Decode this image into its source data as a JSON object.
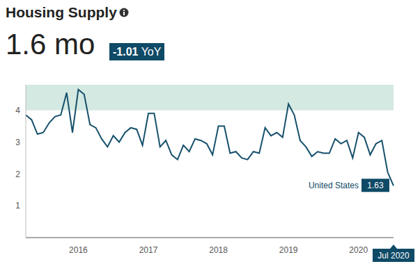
{
  "chart_data": {
    "type": "line",
    "title": "Housing Supply",
    "headline": "1.6 mo",
    "change": "-1.01",
    "change_label": "YoY",
    "categories": [
      null,
      null,
      null,
      null,
      null,
      null,
      null,
      null,
      null,
      "2016",
      null,
      null,
      null,
      null,
      null,
      null,
      null,
      null,
      null,
      null,
      null,
      "2017",
      null,
      null,
      null,
      null,
      null,
      null,
      null,
      null,
      null,
      null,
      null,
      "2018",
      null,
      null,
      null,
      null,
      null,
      null,
      null,
      null,
      null,
      null,
      null,
      "2019",
      null,
      null,
      null,
      null,
      null,
      null,
      null,
      null,
      null,
      null,
      null,
      "2020",
      null,
      null,
      null,
      null,
      null,
      "Jul 2020"
    ],
    "series": [
      {
        "name": "United States",
        "color": "#16506b",
        "values": [
          3.85,
          3.7,
          3.25,
          3.3,
          3.6,
          3.8,
          3.85,
          4.55,
          3.3,
          4.65,
          4.5,
          3.55,
          3.45,
          3.1,
          2.85,
          3.2,
          3.0,
          3.3,
          3.45,
          3.4,
          2.9,
          3.9,
          3.9,
          2.85,
          3.05,
          2.6,
          2.45,
          2.9,
          2.7,
          3.1,
          3.05,
          2.95,
          2.6,
          3.5,
          3.5,
          2.65,
          2.7,
          2.5,
          2.45,
          2.7,
          2.65,
          3.45,
          3.2,
          3.3,
          3.15,
          4.2,
          3.85,
          3.05,
          2.85,
          2.55,
          2.7,
          2.65,
          2.65,
          3.1,
          2.95,
          3.05,
          2.5,
          3.3,
          3.15,
          2.6,
          2.95,
          3.05,
          2.05,
          1.63
        ]
      }
    ],
    "ylim": [
      0,
      4.8
    ],
    "yticks": [
      1,
      2,
      3,
      4
    ],
    "highlight_band": [
      4,
      4.8
    ],
    "grid": false
  }
}
